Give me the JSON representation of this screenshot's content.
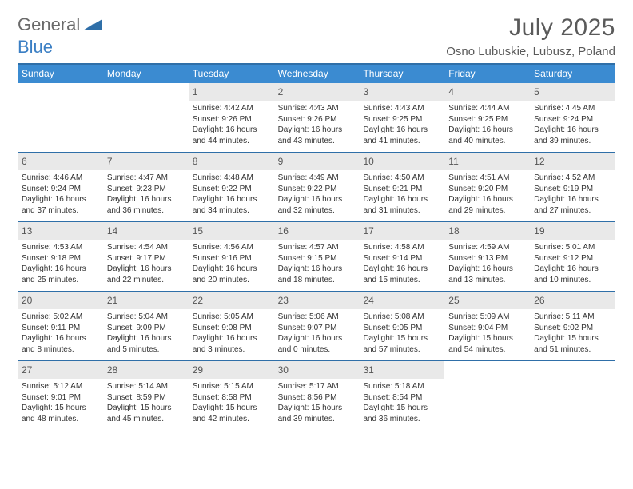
{
  "logo": {
    "word1": "General",
    "word2": "Blue",
    "mark_color": "#2f6fa8"
  },
  "title": "July 2025",
  "location": "Osno Lubuskie, Lubusz, Poland",
  "header_bg": "#3b8bd1",
  "border_color": "#2f6fa8",
  "daynum_bg": "#e9e9e9",
  "dow": [
    "Sunday",
    "Monday",
    "Tuesday",
    "Wednesday",
    "Thursday",
    "Friday",
    "Saturday"
  ],
  "weeks": [
    [
      null,
      null,
      {
        "n": "1",
        "sr": "4:42 AM",
        "ss": "9:26 PM",
        "dl": "16 hours and 44 minutes."
      },
      {
        "n": "2",
        "sr": "4:43 AM",
        "ss": "9:26 PM",
        "dl": "16 hours and 43 minutes."
      },
      {
        "n": "3",
        "sr": "4:43 AM",
        "ss": "9:25 PM",
        "dl": "16 hours and 41 minutes."
      },
      {
        "n": "4",
        "sr": "4:44 AM",
        "ss": "9:25 PM",
        "dl": "16 hours and 40 minutes."
      },
      {
        "n": "5",
        "sr": "4:45 AM",
        "ss": "9:24 PM",
        "dl": "16 hours and 39 minutes."
      }
    ],
    [
      {
        "n": "6",
        "sr": "4:46 AM",
        "ss": "9:24 PM",
        "dl": "16 hours and 37 minutes."
      },
      {
        "n": "7",
        "sr": "4:47 AM",
        "ss": "9:23 PM",
        "dl": "16 hours and 36 minutes."
      },
      {
        "n": "8",
        "sr": "4:48 AM",
        "ss": "9:22 PM",
        "dl": "16 hours and 34 minutes."
      },
      {
        "n": "9",
        "sr": "4:49 AM",
        "ss": "9:22 PM",
        "dl": "16 hours and 32 minutes."
      },
      {
        "n": "10",
        "sr": "4:50 AM",
        "ss": "9:21 PM",
        "dl": "16 hours and 31 minutes."
      },
      {
        "n": "11",
        "sr": "4:51 AM",
        "ss": "9:20 PM",
        "dl": "16 hours and 29 minutes."
      },
      {
        "n": "12",
        "sr": "4:52 AM",
        "ss": "9:19 PM",
        "dl": "16 hours and 27 minutes."
      }
    ],
    [
      {
        "n": "13",
        "sr": "4:53 AM",
        "ss": "9:18 PM",
        "dl": "16 hours and 25 minutes."
      },
      {
        "n": "14",
        "sr": "4:54 AM",
        "ss": "9:17 PM",
        "dl": "16 hours and 22 minutes."
      },
      {
        "n": "15",
        "sr": "4:56 AM",
        "ss": "9:16 PM",
        "dl": "16 hours and 20 minutes."
      },
      {
        "n": "16",
        "sr": "4:57 AM",
        "ss": "9:15 PM",
        "dl": "16 hours and 18 minutes."
      },
      {
        "n": "17",
        "sr": "4:58 AM",
        "ss": "9:14 PM",
        "dl": "16 hours and 15 minutes."
      },
      {
        "n": "18",
        "sr": "4:59 AM",
        "ss": "9:13 PM",
        "dl": "16 hours and 13 minutes."
      },
      {
        "n": "19",
        "sr": "5:01 AM",
        "ss": "9:12 PM",
        "dl": "16 hours and 10 minutes."
      }
    ],
    [
      {
        "n": "20",
        "sr": "5:02 AM",
        "ss": "9:11 PM",
        "dl": "16 hours and 8 minutes."
      },
      {
        "n": "21",
        "sr": "5:04 AM",
        "ss": "9:09 PM",
        "dl": "16 hours and 5 minutes."
      },
      {
        "n": "22",
        "sr": "5:05 AM",
        "ss": "9:08 PM",
        "dl": "16 hours and 3 minutes."
      },
      {
        "n": "23",
        "sr": "5:06 AM",
        "ss": "9:07 PM",
        "dl": "16 hours and 0 minutes."
      },
      {
        "n": "24",
        "sr": "5:08 AM",
        "ss": "9:05 PM",
        "dl": "15 hours and 57 minutes."
      },
      {
        "n": "25",
        "sr": "5:09 AM",
        "ss": "9:04 PM",
        "dl": "15 hours and 54 minutes."
      },
      {
        "n": "26",
        "sr": "5:11 AM",
        "ss": "9:02 PM",
        "dl": "15 hours and 51 minutes."
      }
    ],
    [
      {
        "n": "27",
        "sr": "5:12 AM",
        "ss": "9:01 PM",
        "dl": "15 hours and 48 minutes."
      },
      {
        "n": "28",
        "sr": "5:14 AM",
        "ss": "8:59 PM",
        "dl": "15 hours and 45 minutes."
      },
      {
        "n": "29",
        "sr": "5:15 AM",
        "ss": "8:58 PM",
        "dl": "15 hours and 42 minutes."
      },
      {
        "n": "30",
        "sr": "5:17 AM",
        "ss": "8:56 PM",
        "dl": "15 hours and 39 minutes."
      },
      {
        "n": "31",
        "sr": "5:18 AM",
        "ss": "8:54 PM",
        "dl": "15 hours and 36 minutes."
      },
      null,
      null
    ]
  ],
  "labels": {
    "sunrise": "Sunrise: ",
    "sunset": "Sunset: ",
    "daylight": "Daylight: "
  }
}
